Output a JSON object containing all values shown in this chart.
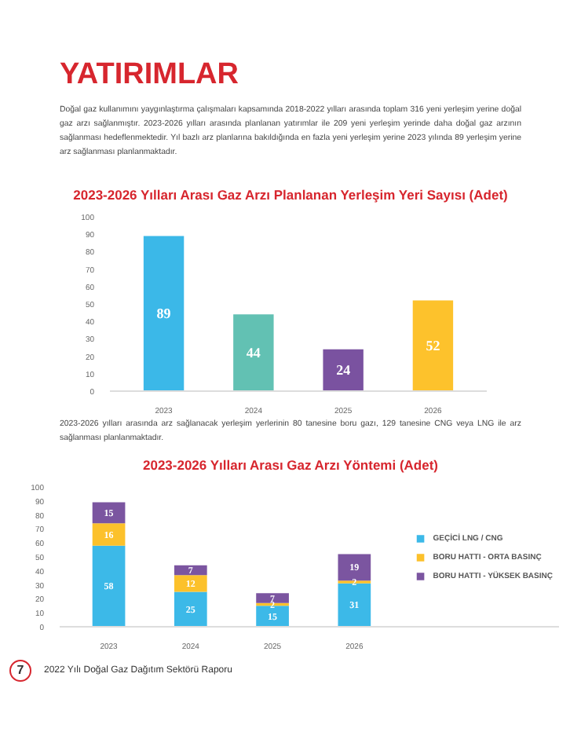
{
  "chart_data": [
    {
      "type": "bar",
      "title": "2023-2026 Yılları Arası Gaz Arzı Planlanan Yerleşim Yeri Sayısı (Adet)",
      "annotations": [
        "YATIRIMLAR",
        "Doğal gaz kullanımını yaygınlaştırma çalışmaları kapsamında 2018-2022 yılları arasında toplam 316 yeni yerleşim yerine doğal gaz arzı sağlanmıştır. 2023-2026 yılları arasında planlanan yatırımlar ile 209 yeni yerleşim yerinde daha doğal gaz arzının sağlanması hedeflenmektedir. Yıl bazlı arz planlarına bakıldığında en fazla yeni yerleşim yerine 2023 yılında 89 yerleşim yerine arz sağlanması planlanmaktadır."
      ],
      "categories": [
        "2023",
        "2024",
        "2025",
        "2026"
      ],
      "values": [
        89,
        44,
        24,
        52
      ],
      "colors": [
        "#3bb8e8",
        "#62c1b3",
        "#7a52a0",
        "#fdc22c"
      ],
      "ylim": [
        0,
        100
      ],
      "yticks": [
        0,
        10,
        20,
        30,
        40,
        50,
        60,
        70,
        80,
        90,
        100
      ],
      "grid": false,
      "data_labels": true
    },
    {
      "type": "bar",
      "title": "2023-2026 Yılları Arası Gaz Arzı Yöntemi (Adet)",
      "annotations": [
        "2023-2026 yılları arasında arz sağlanacak yerleşim yerlerinin 80 tanesine boru gazı, 129 tanesine CNG veya LNG ile arz sağlanması planlanmaktadır.",
        "7",
        "2022 Yılı Doğal Gaz Dağıtım Sektörü Raporu"
      ],
      "categories": [
        "2023",
        "2024",
        "2025",
        "2026"
      ],
      "stacked": true,
      "series": [
        {
          "name": "GEÇİCİ LNG / CNG",
          "color": "#3cb9e8",
          "values": [
            58,
            25,
            15,
            31
          ]
        },
        {
          "name": "BORU HATTI - ORTA BASINÇ",
          "color": "#fcc12b",
          "values": [
            16,
            12,
            2,
            2
          ]
        },
        {
          "name": "BORU HATTI - YÜKSEK BASINÇ",
          "color": "#7b55a0",
          "values": [
            15,
            7,
            7,
            19
          ]
        }
      ],
      "ylim": [
        0,
        100
      ],
      "yticks": [
        0,
        10,
        20,
        30,
        40,
        50,
        60,
        70,
        80,
        90,
        100
      ],
      "grid": false,
      "legend": "right",
      "data_labels": true
    }
  ]
}
